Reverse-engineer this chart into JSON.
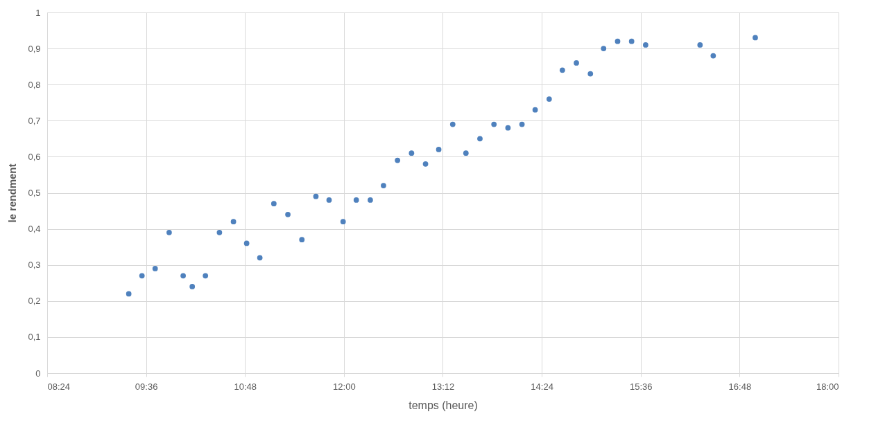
{
  "chart_data": {
    "type": "scatter",
    "xlabel": "temps (heure)",
    "ylabel": "le rendment",
    "marker": "circle",
    "grid": true,
    "xlim": [
      8.4,
      18
    ],
    "xticks": [
      {
        "value": 8.4,
        "label": "08:24"
      },
      {
        "value": 9.6,
        "label": "09:36"
      },
      {
        "value": 10.8,
        "label": "10:48"
      },
      {
        "value": 12,
        "label": "12:00"
      },
      {
        "value": 13.2,
        "label": "13:12"
      },
      {
        "value": 14.4,
        "label": "14:24"
      },
      {
        "value": 15.6,
        "label": "15:36"
      },
      {
        "value": 16.8,
        "label": "16:48"
      },
      {
        "value": 18,
        "label": "18:00"
      }
    ],
    "ylim": [
      0,
      1
    ],
    "yticks": [
      0,
      {
        "value": 0.1,
        "label": "0,1"
      },
      {
        "value": 0.2,
        "label": "0,2"
      },
      {
        "value": 0.3,
        "label": "0,3"
      },
      {
        "value": 0.4,
        "label": "0,4"
      },
      {
        "value": 0.5,
        "label": "0,5"
      },
      {
        "value": 0.6,
        "label": "0,6"
      },
      {
        "value": 0.7,
        "label": "0,7"
      },
      {
        "value": 0.8,
        "label": "0,8"
      },
      {
        "value": 0.9,
        "label": "0,9"
      },
      1
    ],
    "series": [
      {
        "color": "#4f81bd",
        "x": [
          9.39,
          9.55,
          9.71,
          9.88,
          10.05,
          10.16,
          10.32,
          10.49,
          10.66,
          10.82,
          10.98,
          11.15,
          11.32,
          11.49,
          11.66,
          11.82,
          11.99,
          12.15,
          12.32,
          12.48,
          12.65,
          12.82,
          12.99,
          13.15,
          13.32,
          13.48,
          13.65,
          13.82,
          13.99,
          14.16,
          14.32,
          14.49,
          14.65,
          14.82,
          14.99,
          15.15,
          15.32,
          15.49,
          15.66,
          16.32,
          16.48,
          16.99
        ],
        "values": [
          0.22,
          0.27,
          0.29,
          0.39,
          0.27,
          0.24,
          0.27,
          0.39,
          0.42,
          0.36,
          0.32,
          0.47,
          0.44,
          0.37,
          0.49,
          0.48,
          0.42,
          0.48,
          0.48,
          0.52,
          0.59,
          0.61,
          0.58,
          0.62,
          0.69,
          0.61,
          0.65,
          0.69,
          0.68,
          0.69,
          0.73,
          0.76,
          0.84,
          0.86,
          0.83,
          0.9,
          0.92,
          0.92,
          0.91,
          0.91,
          0.88,
          0.93
        ]
      }
    ]
  }
}
